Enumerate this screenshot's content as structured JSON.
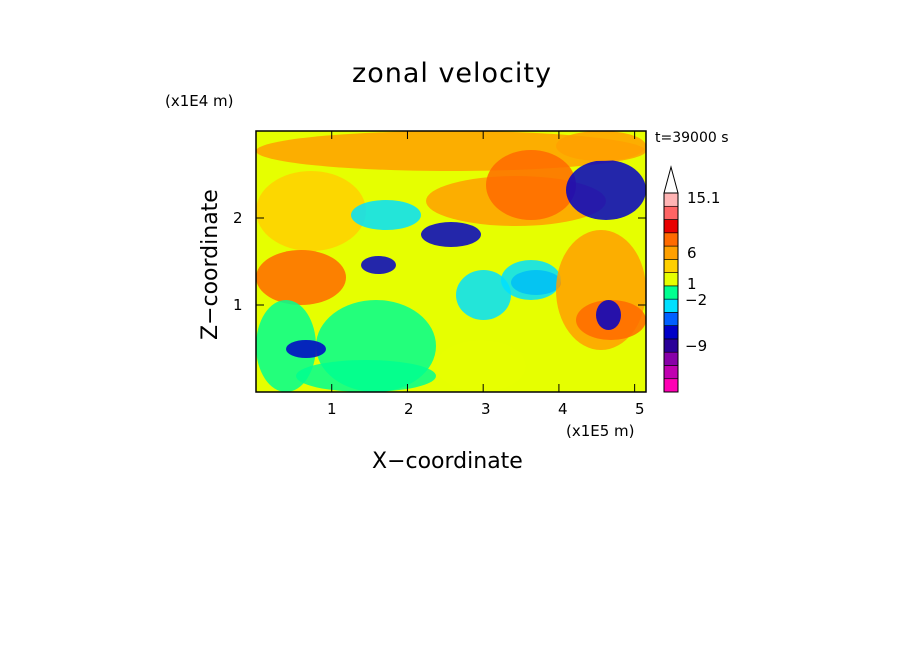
{
  "chart_data": {
    "type": "heatmap",
    "title": "zonal velocity",
    "xlabel": "X−coordinate",
    "ylabel": "Z−coordinate",
    "x_unit": "(x1E5 m)",
    "y_unit": "(x1E4 m)",
    "time_label": "t=39000 s",
    "xlim": [
      0,
      5.15
    ],
    "ylim": [
      0,
      3.0
    ],
    "x_ticks": [
      1,
      2,
      3,
      4,
      5
    ],
    "y_ticks": [
      1,
      2
    ],
    "x_tick_labels": [
      "1",
      "2",
      "3",
      "4",
      "5"
    ],
    "y_tick_labels": [
      "1",
      "2"
    ],
    "colorbar": {
      "labels": [
        "15.1",
        "6",
        "1",
        "−2",
        "−9"
      ],
      "label_values": [
        15.1,
        6,
        1,
        -2,
        -9
      ],
      "extend": "max",
      "level_colors": [
        "#ff00b4",
        "#c000b0",
        "#8800a8",
        "#2a0098",
        "#0000c8",
        "#0060ff",
        "#00e0ff",
        "#00ff90",
        "#e6ff00",
        "#ffd000",
        "#ffa000",
        "#ff6a00",
        "#e80000",
        "#ff6464",
        "#ffb4b4"
      ]
    }
  }
}
